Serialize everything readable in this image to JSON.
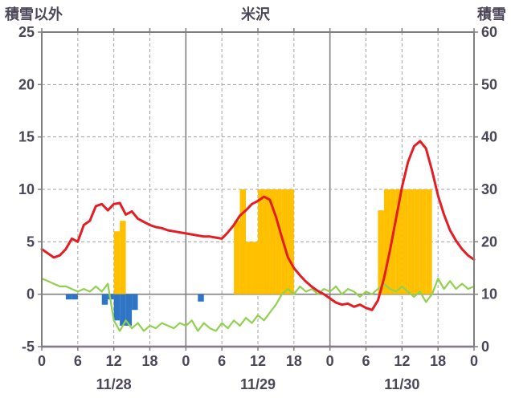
{
  "chart_data": {
    "type": "combo",
    "title": "米沢",
    "left_axis": {
      "label": "積雪以外",
      "min": -5,
      "max": 25,
      "ticks": [
        25,
        20,
        15,
        10,
        5,
        0,
        -5
      ]
    },
    "right_axis": {
      "label": "積雪",
      "min": 0,
      "max": 60,
      "ticks": [
        60,
        50,
        40,
        30,
        20,
        10,
        0
      ]
    },
    "x_axis": {
      "total_hours": 72,
      "tick_every": 6,
      "hour_labels": [
        "0",
        "6",
        "12",
        "18",
        "0",
        "6",
        "12",
        "18",
        "0",
        "6",
        "12",
        "18",
        "0"
      ],
      "day_labels": [
        "11/28",
        "11/29",
        "11/30"
      ]
    },
    "style": {
      "text_color": "#4c4659",
      "grid_color": "#a3a3a3",
      "axis_color": "#7f7f7f",
      "background": "#ffffff"
    },
    "series": [
      {
        "name": "green-line",
        "type": "line",
        "axis": "right",
        "color": "#92d050",
        "width": 2.2,
        "values": [
          13,
          12.5,
          12,
          11.5,
          11.5,
          11,
          10.5,
          11,
          10.5,
          11.5,
          10.5,
          12,
          5,
          3,
          5,
          3.5,
          4.5,
          3,
          4,
          3.5,
          4.5,
          4,
          3.5,
          4.5,
          4,
          5,
          3,
          4.5,
          3.5,
          3,
          4.5,
          3.5,
          5,
          4,
          5.5,
          4.5,
          6,
          5,
          6.5,
          8,
          10,
          11,
          10,
          11.5,
          10.5,
          11,
          10,
          11,
          10.5,
          11.5,
          10,
          11,
          10.5,
          9.5,
          10.5,
          10,
          11,
          12,
          11,
          10.5,
          11.5,
          10.5,
          9.5,
          10.5,
          8.5,
          10,
          13,
          11,
          12.5,
          11,
          12,
          11,
          11.5
        ]
      },
      {
        "name": "red-line",
        "type": "line",
        "axis": "left",
        "color": "#e51c23",
        "width": 3,
        "values": [
          4.3,
          3.9,
          3.5,
          3.7,
          4.3,
          5.3,
          5.0,
          6.6,
          7.0,
          8.4,
          8.6,
          8.0,
          8.6,
          8.7,
          7.6,
          7.9,
          7.2,
          6.9,
          6.6,
          6.4,
          6.3,
          6.1,
          6.0,
          5.9,
          5.8,
          5.7,
          5.6,
          5.5,
          5.5,
          5.4,
          5.3,
          5.9,
          6.6,
          7.5,
          8.0,
          8.6,
          8.9,
          9.3,
          9.0,
          7.4,
          5.4,
          3.5,
          2.5,
          1.8,
          1.2,
          0.7,
          0.3,
          0.0,
          -0.4,
          -0.8,
          -1.0,
          -0.9,
          -1.2,
          -1.0,
          -1.3,
          -1.5,
          -0.6,
          1.5,
          4.2,
          7.2,
          10.2,
          12.6,
          14.1,
          14.6,
          13.9,
          11.8,
          9.4,
          7.6,
          6.1,
          5.1,
          4.3,
          3.7,
          3.3
        ]
      },
      {
        "name": "orange-bars",
        "type": "bar",
        "axis": "left",
        "color": "#ffc000",
        "points": [
          [
            12,
            6
          ],
          [
            13,
            7
          ],
          [
            32,
            7
          ],
          [
            33,
            10
          ],
          [
            34,
            5
          ],
          [
            35,
            5
          ],
          [
            36,
            10
          ],
          [
            37,
            10
          ],
          [
            38,
            10
          ],
          [
            39,
            10
          ],
          [
            40,
            10
          ],
          [
            41,
            10
          ],
          [
            56,
            8
          ],
          [
            57,
            10
          ],
          [
            58,
            10
          ],
          [
            59,
            10
          ],
          [
            60,
            10
          ],
          [
            61,
            10
          ],
          [
            62,
            10
          ],
          [
            63,
            10
          ],
          [
            64,
            10
          ]
        ]
      },
      {
        "name": "blue-bars",
        "type": "bar",
        "axis": "left",
        "color": "#2e75c6",
        "points": [
          [
            4,
            -0.5
          ],
          [
            5,
            -0.5
          ],
          [
            10,
            -1.0
          ],
          [
            11,
            -0.5
          ],
          [
            12,
            -2.5
          ],
          [
            13,
            -3.0
          ],
          [
            14,
            -3.0
          ],
          [
            15,
            -1.5
          ],
          [
            26,
            -0.7
          ]
        ]
      },
      {
        "name": "purple-line",
        "type": "line",
        "axis": "right",
        "color": "#7030a0",
        "width": 2.5,
        "constant": 0
      }
    ]
  }
}
